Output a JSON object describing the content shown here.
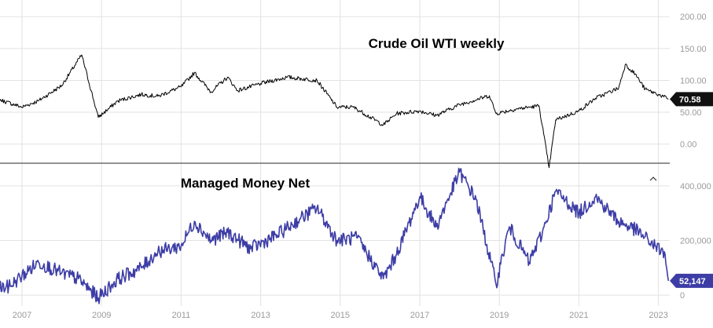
{
  "chart_data": [
    {
      "type": "line",
      "title": "Crude Oil WTI weekly",
      "price_label": "70.58",
      "last_value": 70.58,
      "ylim": [
        -30,
        220
      ],
      "yticks": [
        "200.00",
        "150.00",
        "100.00",
        "50.00",
        "0.00"
      ],
      "ytick_values": [
        200,
        150,
        100,
        50,
        0
      ],
      "line_color": "#000000",
      "badge_color": "#111111",
      "x": [
        "2006-01",
        "2006-06",
        "2007-01",
        "2007-06",
        "2008-01",
        "2008-07",
        "2008-12",
        "2009-06",
        "2010-01",
        "2010-06",
        "2011-01",
        "2011-05",
        "2011-10",
        "2012-03",
        "2012-06",
        "2013-01",
        "2013-09",
        "2014-06",
        "2014-12",
        "2015-05",
        "2016-02",
        "2016-06",
        "2017-01",
        "2017-06",
        "2018-01",
        "2018-10",
        "2018-12",
        "2019-06",
        "2020-01",
        "2020-04",
        "2020-06",
        "2021-01",
        "2021-06",
        "2022-01",
        "2022-03",
        "2022-06",
        "2022-09",
        "2023-01",
        "2023-04"
      ],
      "values": [
        62,
        70,
        58,
        68,
        92,
        140,
        42,
        68,
        78,
        75,
        90,
        112,
        82,
        105,
        84,
        95,
        105,
        100,
        58,
        58,
        30,
        48,
        52,
        45,
        62,
        76,
        48,
        55,
        60,
        -37,
        38,
        52,
        72,
        88,
        125,
        110,
        86,
        78,
        70.58
      ]
    },
    {
      "type": "line",
      "title": "Managed Money Net",
      "price_label": "52,147",
      "last_value": 52147,
      "ylim": [
        -40000,
        480000
      ],
      "yticks": [
        "400,000",
        "200,000",
        "0"
      ],
      "ytick_values": [
        400000,
        200000,
        0
      ],
      "line_color": "#3d3da6",
      "badge_color": "#3d3da6",
      "x": [
        "2006-01",
        "2006-09",
        "2007-06",
        "2008-01",
        "2008-06",
        "2008-12",
        "2009-06",
        "2010-01",
        "2010-06",
        "2011-01",
        "2011-05",
        "2011-10",
        "2012-03",
        "2012-10",
        "2013-06",
        "2014-01",
        "2014-06",
        "2014-12",
        "2015-06",
        "2016-02",
        "2016-06",
        "2017-01",
        "2017-06",
        "2018-01",
        "2018-06",
        "2018-12",
        "2019-04",
        "2019-10",
        "2020-02",
        "2020-06",
        "2021-01",
        "2021-06",
        "2022-01",
        "2022-06",
        "2022-12",
        "2023-03",
        "2023-04"
      ],
      "values": [
        20000,
        30000,
        120000,
        80000,
        60000,
        -10000,
        60000,
        100000,
        160000,
        180000,
        270000,
        200000,
        230000,
        170000,
        220000,
        280000,
        320000,
        200000,
        210000,
        60000,
        150000,
        360000,
        250000,
        450000,
        350000,
        40000,
        250000,
        120000,
        230000,
        380000,
        300000,
        360000,
        270000,
        240000,
        180000,
        150000,
        52147
      ]
    }
  ],
  "x_axis": {
    "labels": [
      "2007",
      "2009",
      "2011",
      "2013",
      "2015",
      "2017",
      "2019",
      "2021",
      "2023"
    ],
    "years": [
      2007,
      2009,
      2011,
      2013,
      2015,
      2017,
      2019,
      2021,
      2023
    ]
  },
  "colors": {
    "grid": "#e2e2e2",
    "separator": "#6e6e6e",
    "axis_text": "#9a9a9a"
  },
  "icons": {
    "collapse": "chevron-up-icon"
  }
}
